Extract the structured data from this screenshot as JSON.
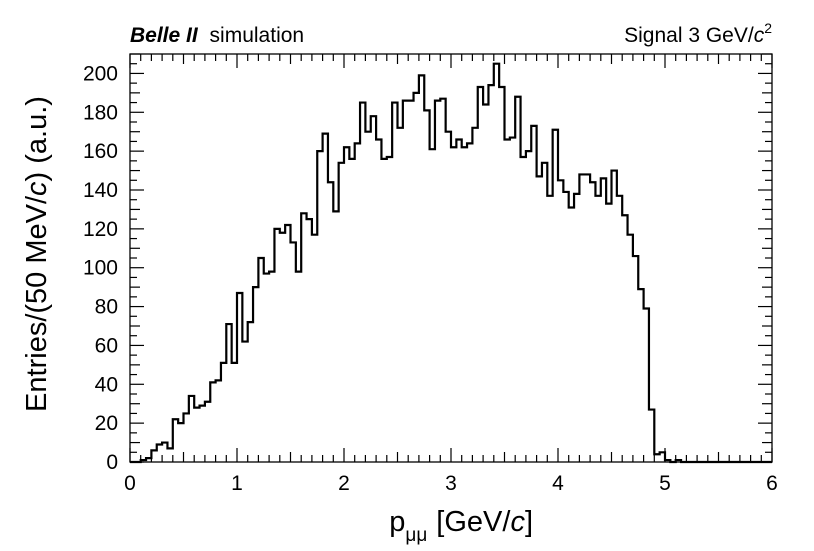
{
  "chart_data": {
    "type": "histogram",
    "title_left_bold": "Belle II",
    "title_left_rest": "simulation",
    "title_right": "Signal 3 GeV/c²",
    "title_right_parts": {
      "main": "Signal 3 GeV/",
      "italic": "c",
      "sup": "2"
    },
    "xlabel": "p_μμ [GeV/c]",
    "xlabel_parts": {
      "p": "p",
      "sub": "μμ",
      "open": "[GeV/",
      "italic": "c",
      "close": "]"
    },
    "ylabel": "Entries/(50 MeV/c) (a.u.)",
    "ylabel_parts": {
      "before": "Entries/(50 MeV/",
      "italic": "c",
      "after": ") (a.u.)"
    },
    "xlim": [
      0,
      6
    ],
    "ylim": [
      0,
      210
    ],
    "bin_width": 0.05,
    "x_ticks": [
      "0",
      "1",
      "2",
      "3",
      "4",
      "5",
      "6"
    ],
    "y_ticks": [
      "0",
      "20",
      "40",
      "60",
      "80",
      "100",
      "120",
      "140",
      "160",
      "180",
      "200"
    ],
    "bin_start": 0,
    "values": [
      0,
      0,
      1,
      2,
      6,
      9,
      10,
      7,
      22,
      20,
      25,
      34,
      28,
      29,
      31,
      41,
      42,
      51,
      71,
      51,
      87,
      62,
      72,
      90,
      105,
      97,
      98,
      120,
      118,
      122,
      113,
      98,
      128,
      125,
      117,
      160,
      169,
      144,
      129,
      154,
      162,
      156,
      164,
      185,
      170,
      178,
      166,
      156,
      157,
      185,
      172,
      186,
      186,
      190,
      199,
      181,
      161,
      186,
      187,
      170,
      162,
      166,
      162,
      164,
      172,
      193,
      184,
      194,
      205,
      193,
      166,
      167,
      188,
      157,
      160,
      173,
      147,
      154,
      137,
      171,
      145,
      139,
      131,
      138,
      148,
      148,
      144,
      137,
      146,
      133,
      150,
      137,
      127,
      117,
      106,
      89,
      79,
      27,
      4,
      5,
      1,
      0,
      1,
      0,
      0,
      0,
      0,
      0,
      0,
      0,
      0,
      0,
      0,
      0,
      0,
      0,
      0,
      0,
      0,
      0
    ]
  }
}
